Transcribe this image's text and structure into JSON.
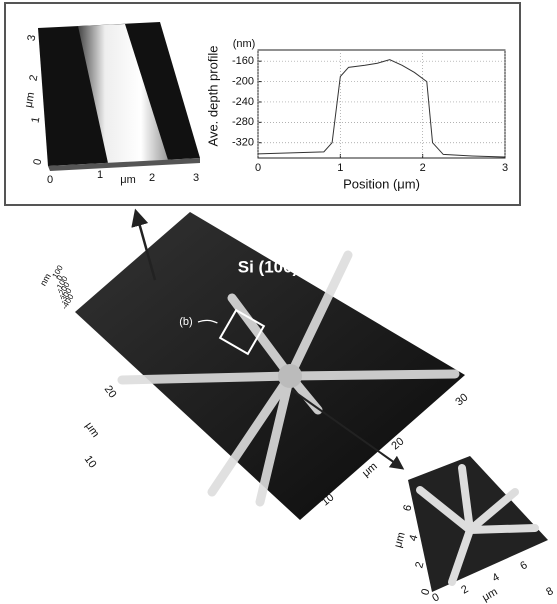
{
  "chart_data": {
    "type": "line",
    "x": [
      0,
      0.4,
      0.8,
      0.9,
      1.0,
      1.1,
      1.3,
      1.45,
      1.6,
      1.75,
      1.9,
      2.05,
      2.12,
      2.25,
      2.6,
      3.0
    ],
    "values": [
      -342,
      -340,
      -338,
      -320,
      -190,
      -172,
      -168,
      -164,
      -157,
      -168,
      -182,
      -200,
      -320,
      -343,
      -346,
      -348
    ],
    "color": "#333333",
    "xlim": [
      0,
      3
    ],
    "xticks": [
      0,
      1,
      2,
      3
    ],
    "ylim": [
      -350,
      -138
    ],
    "yticks": [
      -160,
      -200,
      -240,
      -280,
      -320
    ],
    "grid": true,
    "y_unit": "(nm)",
    "ylabel": "Ave. depth profile",
    "xlabel": "Position (μm)"
  },
  "top_left_image": {
    "y_ticks": [
      "0",
      "1",
      "2",
      "3"
    ],
    "x_ticks": [
      "0",
      "1",
      "2",
      "3"
    ],
    "y_unit": "μm",
    "x_unit": "μm"
  },
  "main_image": {
    "title": "Si (100)",
    "marker": "(b)",
    "z_unit": "nm",
    "z_ticks": [
      "100",
      "0",
      "-100",
      "-200",
      "-300",
      "-400"
    ],
    "left_ticks": [
      "20",
      "10"
    ],
    "left_unit": "μm",
    "right_ticks": [
      "30",
      "20",
      "10"
    ],
    "right_unit": "μm"
  },
  "inset_image": {
    "y_ticks": [
      "0",
      "2",
      "4",
      "6"
    ],
    "x_ticks": [
      "0",
      "2",
      "4",
      "6",
      "8"
    ],
    "y_unit": "μm",
    "x_unit": "μm"
  }
}
